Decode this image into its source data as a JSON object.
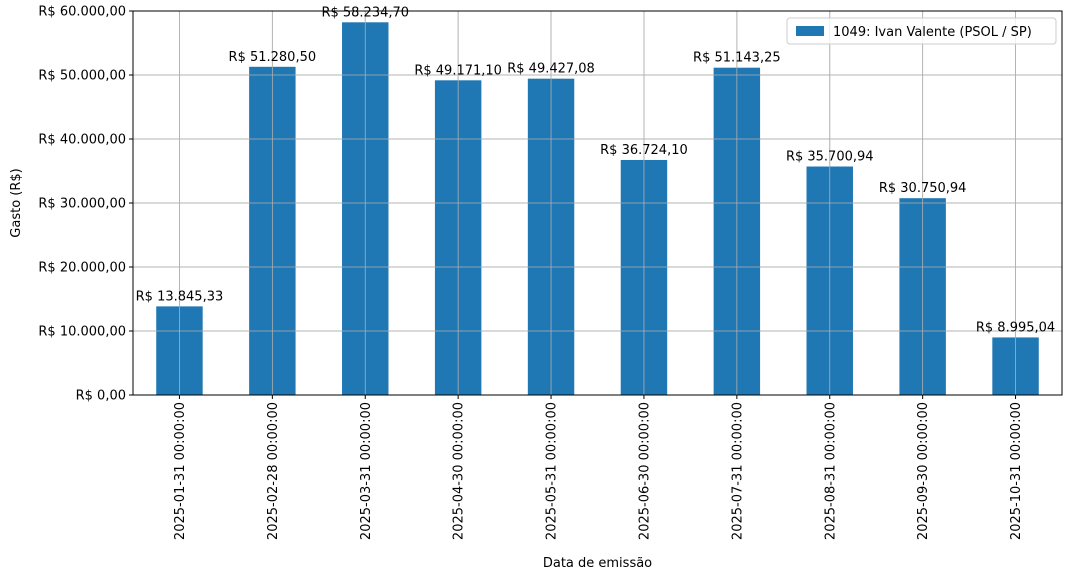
{
  "chart_data": {
    "type": "bar",
    "title": "",
    "xlabel": "Data de emissão",
    "ylabel": "Gasto (R$)",
    "ylim": [
      0,
      60000
    ],
    "yticks": [
      0,
      10000,
      20000,
      30000,
      40000,
      50000,
      60000
    ],
    "ytick_labels": [
      "R$ 0,00",
      "R$ 10.000,00",
      "R$ 20.000,00",
      "R$ 30.000,00",
      "R$ 40.000,00",
      "R$ 50.000,00",
      "R$ 60.000,00"
    ],
    "grid": true,
    "legend_position": "top-right",
    "categories": [
      "2025-01-31 00:00:00",
      "2025-02-28 00:00:00",
      "2025-03-31 00:00:00",
      "2025-04-30 00:00:00",
      "2025-05-31 00:00:00",
      "2025-06-30 00:00:00",
      "2025-07-31 00:00:00",
      "2025-08-31 00:00:00",
      "2025-09-30 00:00:00",
      "2025-10-31 00:00:00"
    ],
    "series": [
      {
        "name": "1049: Ivan Valente (PSOL / SP)",
        "color": "#1f77b4",
        "values": [
          13845.33,
          51280.5,
          58234.7,
          49171.1,
          49427.08,
          36724.1,
          51143.25,
          35700.94,
          30750.94,
          8995.04
        ],
        "data_labels": [
          "R$ 13.845,33",
          "R$ 51.280,50",
          "R$ 58.234,70",
          "R$ 49.171,10",
          "R$ 49.427,08",
          "R$ 36.724,10",
          "R$ 51.143,25",
          "R$ 35.700,94",
          "R$ 30.750,94",
          "R$ 8.995,04"
        ]
      }
    ]
  }
}
